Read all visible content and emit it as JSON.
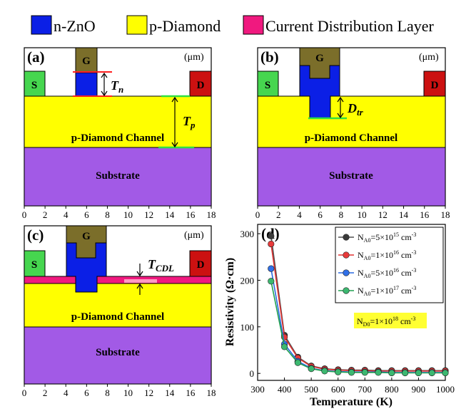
{
  "legend": [
    {
      "label": "n-ZnO",
      "color": "#0b1fe6"
    },
    {
      "label": "p-Diamond",
      "color": "#ffff00"
    },
    {
      "label": "Current Distribution Layer",
      "color": "#f0197f"
    }
  ],
  "colors": {
    "zno": "#0b1fe6",
    "diamond": "#ffff00",
    "cdl": "#f0197f",
    "substrate": "#a25ae6",
    "source": "#46d64f",
    "drain": "#cc1111",
    "gate": "#7b6e2a",
    "green_line": "#30e040",
    "red_line": "#ff2020"
  },
  "x_ticks": [
    "0",
    "2",
    "4",
    "6",
    "8",
    "10",
    "12",
    "14",
    "16",
    "18"
  ],
  "unit": "(μm)",
  "labels": {
    "gate": "G",
    "source": "S",
    "drain": "D",
    "channel": "p-Diamond Channel",
    "substrate": "Substrate"
  },
  "panel_a": {
    "tag": "(a)",
    "tn": "T",
    "tn_sub": "n",
    "tp": "T",
    "tp_sub": "p"
  },
  "panel_b": {
    "tag": "(b)",
    "dtr": "D",
    "dtr_sub": "tr"
  },
  "panel_c": {
    "tag": "(c)",
    "tcdl": "T",
    "tcdl_sub": "CDL"
  },
  "chart_data": {
    "type": "line",
    "tag": "(d)",
    "xlabel": "Temperature (K)",
    "ylabel": "Resistivity (Ω·cm)",
    "xlim": [
      300,
      1000
    ],
    "ylim": [
      -15,
      320
    ],
    "xticks": [
      300,
      400,
      500,
      600,
      700,
      800,
      900,
      1000
    ],
    "yticks": [
      0,
      100,
      200,
      300
    ],
    "x": [
      350,
      400,
      450,
      500,
      550,
      600,
      650,
      700,
      750,
      800,
      850,
      900,
      950,
      1000
    ],
    "annotation": {
      "prefix": "N",
      "sub": "D0",
      "text": "=1×10",
      "sup": "18",
      "unit": " cm",
      "unit_sup": "-3"
    },
    "series": [
      {
        "sub": "A0",
        "coef": "=5×10",
        "exp": "15",
        "unit": " cm",
        "unit_sup": "-3",
        "color": "#505050",
        "fill": "#3a3a3a",
        "values": [
          295,
          82,
          35,
          16,
          10,
          8,
          7,
          7,
          6,
          6,
          6,
          6,
          6,
          6
        ]
      },
      {
        "sub": "A0",
        "coef": "=1×10",
        "exp": "16",
        "unit": " cm",
        "unit_sup": "-3",
        "color": "#e03030",
        "fill": "#e83a3a",
        "values": [
          278,
          78,
          33,
          15,
          9,
          7,
          6,
          6,
          5,
          5,
          5,
          5,
          5,
          5
        ]
      },
      {
        "sub": "A0",
        "coef": "=5×10",
        "exp": "16",
        "unit": " cm",
        "unit_sup": "-3",
        "color": "#2a6ae0",
        "fill": "#3070e8",
        "values": [
          225,
          63,
          26,
          11,
          6,
          4,
          3,
          3,
          3,
          2,
          2,
          2,
          2,
          2
        ]
      },
      {
        "sub": "A0",
        "coef": "=1×10",
        "exp": "17",
        "unit": " cm",
        "unit_sup": "-3",
        "color": "#22a050",
        "fill": "#3cb870",
        "values": [
          198,
          57,
          23,
          10,
          5,
          3,
          2,
          2,
          2,
          1,
          1,
          1,
          1,
          1
        ]
      }
    ]
  }
}
